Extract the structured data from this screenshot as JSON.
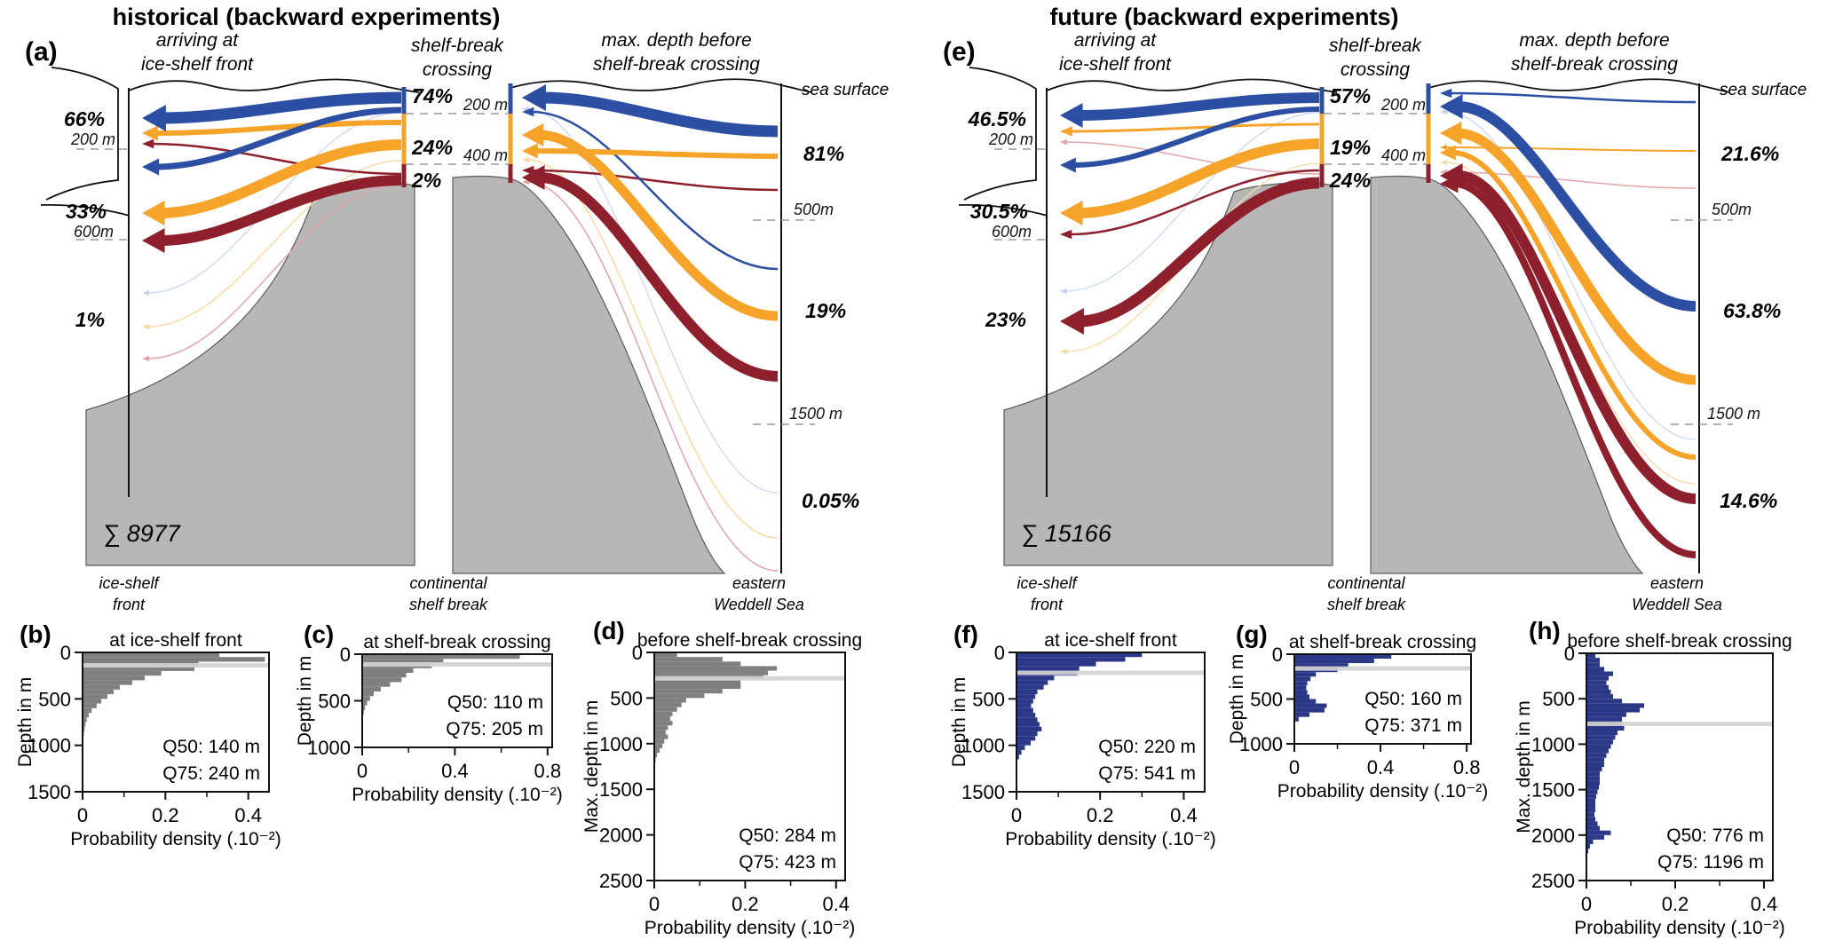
{
  "colors": {
    "blue": "#2d4fa3",
    "orange": "#f6a329",
    "darkred": "#8e1f2c",
    "pale_blue": "#c9d4ef",
    "pale_orange": "#fbd9a3",
    "pale_red": "#e0a5ab",
    "land_gray": "#b7b7b7",
    "hist_gray": "#7f7f7f",
    "hist_navy": "#2b3887",
    "median_line": "#d4d4d4"
  },
  "panel_a": {
    "label": "(a)",
    "title": "historical (backward experiments)",
    "col1": [
      "arriving at",
      "ice-shelf front"
    ],
    "col2": [
      "shelf-break",
      "crossing"
    ],
    "col3": [
      "max. depth before",
      "shelf-break crossing"
    ],
    "sea_surface": "sea surface",
    "left": {
      "p1": "66%",
      "d1": "200 m",
      "p2": "33%",
      "d2": "600m",
      "p3": "1%"
    },
    "mid": {
      "p1": "74%",
      "d1": "200 m",
      "p2": "24%",
      "d2": "400 m",
      "p3": "2%"
    },
    "right": {
      "p1": "81%",
      "d1": "500m",
      "p2": "19%",
      "d2": "1500 m",
      "p3": "0.05%"
    },
    "sum": "∑ 8977",
    "loc1": [
      "ice-shelf",
      "front"
    ],
    "loc2": [
      "continental",
      "shelf break"
    ],
    "loc3": [
      "eastern",
      "Weddell Sea"
    ]
  },
  "panel_e": {
    "label": "(e)",
    "title": "future (backward experiments)",
    "col1": [
      "arriving at",
      "ice-shelf front"
    ],
    "col2": [
      "shelf-break",
      "crossing"
    ],
    "col3": [
      "max. depth before",
      "shelf-break crossing"
    ],
    "sea_surface": "sea surface",
    "left": {
      "p1": "46.5%",
      "d1": "200 m",
      "p2": "30.5%",
      "d2": "600m",
      "p3": "23%"
    },
    "mid": {
      "p1": "57%",
      "d1": "200 m",
      "p2": "19%",
      "d2": "400 m",
      "p3": "24%"
    },
    "right": {
      "p1": "21.6%",
      "d1": "500m",
      "p2": "63.8%",
      "d2": "1500 m",
      "p3": "14.6%"
    },
    "sum": "∑ 15166",
    "loc1": [
      "ice-shelf",
      "front"
    ],
    "loc2": [
      "continental",
      "shelf break"
    ],
    "loc3": [
      "eastern",
      "Weddell Sea"
    ]
  },
  "chart_data": [
    {
      "type": "bar",
      "id": "b",
      "panel_label": "(b)",
      "title": "at ice-shelf front",
      "ylabel": "Depth in m",
      "xlabel": "Probability density (.10⁻²)",
      "ylim": [
        0,
        1500
      ],
      "xlim": [
        0,
        0.45
      ],
      "bin_m": 50,
      "yticks": {
        "values": [
          0,
          500,
          1000,
          1500
        ],
        "labels": [
          "0",
          "500",
          "1000",
          "1500"
        ]
      },
      "xticks": {
        "values": [
          0,
          0.2,
          0.4
        ],
        "labels": [
          "0",
          "0.2",
          "0.4"
        ],
        "minor": [
          0.1,
          0.3
        ]
      },
      "q50_m": 140,
      "q75_m": 240,
      "q50_label": "Q50: 140 m",
      "q75_label": "Q75: 240 m",
      "bar_color": "#7f7f7f",
      "values": [
        0.33,
        0.44,
        0.28,
        0.27,
        0.19,
        0.15,
        0.12,
        0.09,
        0.075,
        0.06,
        0.045,
        0.034,
        0.022,
        0.015,
        0.01,
        0.007,
        0.005,
        0.003,
        0.002,
        0.002,
        0.001,
        0.001,
        0.001,
        0,
        0,
        0,
        0,
        0,
        0,
        0
      ]
    },
    {
      "type": "bar",
      "id": "c",
      "panel_label": "(c)",
      "title": "at shelf-break crossing",
      "ylabel": "Depth in m",
      "xlabel": "Probability density (.10⁻²)",
      "ylim": [
        0,
        1000
      ],
      "xlim": [
        0,
        0.82
      ],
      "bin_m": 50,
      "yticks": {
        "values": [
          0,
          500,
          1000
        ],
        "labels": [
          "0",
          "500",
          "1000"
        ]
      },
      "xticks": {
        "values": [
          0,
          0.4,
          0.8
        ],
        "labels": [
          "0",
          "0.4",
          "0.8"
        ],
        "minor": [
          0.2,
          0.6
        ]
      },
      "q50_m": 110,
      "q75_m": 205,
      "q50_label": "Q50: 110 m",
      "q75_label": "Q75: 205 m",
      "bar_color": "#7f7f7f",
      "values": [
        0.68,
        0.35,
        0.3,
        0.22,
        0.19,
        0.17,
        0.12,
        0.08,
        0.05,
        0.034,
        0.021,
        0.012,
        0.007,
        0.004,
        0.002,
        0.001,
        0,
        0,
        0,
        0
      ]
    },
    {
      "type": "bar",
      "id": "d",
      "panel_label": "(d)",
      "title": "before shelf-break crossing",
      "ylabel": "Max. depth in m",
      "xlabel": "Probability density (.10⁻²)",
      "ylim": [
        0,
        2500
      ],
      "xlim": [
        0,
        0.42
      ],
      "bin_m": 50,
      "yticks": {
        "values": [
          0,
          500,
          1000,
          1500,
          2000,
          2500
        ],
        "labels": [
          "0",
          "500",
          "1000",
          "1500",
          "2000",
          "2500"
        ]
      },
      "xticks": {
        "values": [
          0,
          0.2,
          0.4
        ],
        "labels": [
          "0",
          "0.2",
          "0.4"
        ],
        "minor": [
          0.1,
          0.3
        ]
      },
      "q50_m": 284,
      "q75_m": 423,
      "q50_label": "Q50: 284 m",
      "q75_label": "Q75: 423 m",
      "bar_color": "#7f7f7f",
      "values": [
        0.05,
        0.15,
        0.19,
        0.27,
        0.25,
        0.24,
        0.19,
        0.19,
        0.15,
        0.11,
        0.07,
        0.06,
        0.05,
        0.04,
        0.035,
        0.04,
        0.03,
        0.025,
        0.03,
        0.022,
        0.018,
        0.012,
        0.006,
        0.003,
        0,
        0,
        0,
        0,
        0,
        0,
        0,
        0,
        0,
        0,
        0,
        0,
        0,
        0,
        0,
        0,
        0,
        0,
        0,
        0,
        0,
        0,
        0,
        0,
        0,
        0
      ]
    },
    {
      "type": "bar",
      "id": "f",
      "panel_label": "(f)",
      "title": "at ice-shelf front",
      "ylabel": "Depth in m",
      "xlabel": "Probability density (.10⁻²)",
      "ylim": [
        0,
        1500
      ],
      "xlim": [
        0,
        0.45
      ],
      "bin_m": 50,
      "yticks": {
        "values": [
          0,
          500,
          1000,
          1500
        ],
        "labels": [
          "0",
          "500",
          "1000",
          "1500"
        ]
      },
      "xticks": {
        "values": [
          0,
          0.2,
          0.4
        ],
        "labels": [
          "0",
          "0.2",
          "0.4"
        ],
        "minor": [
          0.1,
          0.3
        ]
      },
      "q50_m": 220,
      "q75_m": 541,
      "q50_label": "Q50: 220 m",
      "q75_label": "Q75: 541 m",
      "bar_color": "#2b3887",
      "values": [
        0.3,
        0.26,
        0.19,
        0.15,
        0.145,
        0.09,
        0.075,
        0.065,
        0.05,
        0.045,
        0.04,
        0.035,
        0.04,
        0.045,
        0.05,
        0.055,
        0.06,
        0.05,
        0.045,
        0.034,
        0.02,
        0.012,
        0.006,
        0.002,
        0,
        0,
        0,
        0,
        0,
        0
      ]
    },
    {
      "type": "bar",
      "id": "g",
      "panel_label": "(g)",
      "title": "at shelf-break crossing",
      "ylabel": "Depth in m",
      "xlabel": "Probability density (.10⁻²)",
      "ylim": [
        0,
        1000
      ],
      "xlim": [
        0,
        0.82
      ],
      "bin_m": 50,
      "yticks": {
        "values": [
          0,
          500,
          1000
        ],
        "labels": [
          "0",
          "500",
          "1000"
        ]
      },
      "xticks": {
        "values": [
          0,
          0.4,
          0.8
        ],
        "labels": [
          "0",
          "0.4",
          "0.8"
        ],
        "minor": [
          0.2,
          0.6
        ]
      },
      "q50_m": 160,
      "q75_m": 371,
      "q50_label": "Q50: 160 m",
      "q75_label": "Q75: 371 m",
      "bar_color": "#2b3887",
      "values": [
        0.45,
        0.37,
        0.25,
        0.2,
        0.1,
        0.075,
        0.06,
        0.055,
        0.06,
        0.07,
        0.1,
        0.15,
        0.14,
        0.07,
        0.02,
        0,
        0,
        0,
        0,
        0
      ]
    },
    {
      "type": "bar",
      "id": "h",
      "panel_label": "(h)",
      "title": "before shelf-break crossing",
      "ylabel": "Max. depth in m",
      "xlabel": "Probability density (.10⁻²)",
      "ylim": [
        0,
        2500
      ],
      "xlim": [
        0,
        0.42
      ],
      "bin_m": 50,
      "yticks": {
        "values": [
          0,
          500,
          1000,
          1500,
          2000,
          2500
        ],
        "labels": [
          "0",
          "500",
          "1000",
          "1500",
          "2000",
          "2500"
        ]
      },
      "xticks": {
        "values": [
          0,
          0.2,
          0.4
        ],
        "labels": [
          "0",
          "0.2",
          "0.4"
        ],
        "minor": [
          0.1,
          0.3
        ]
      },
      "q50_m": 776,
      "q75_m": 1196,
      "q50_label": "Q50: 776 m",
      "q75_label": "Q75: 1196 m",
      "bar_color": "#2b3887",
      "values": [
        0.02,
        0.03,
        0.03,
        0.04,
        0.06,
        0.05,
        0.045,
        0.05,
        0.055,
        0.06,
        0.08,
        0.13,
        0.12,
        0.09,
        0.08,
        0.08,
        0.085,
        0.07,
        0.065,
        0.06,
        0.055,
        0.05,
        0.045,
        0.04,
        0.04,
        0.035,
        0.03,
        0.03,
        0.03,
        0.028,
        0.025,
        0.022,
        0.02,
        0.02,
        0.02,
        0.018,
        0.02,
        0.025,
        0.03,
        0.055,
        0.04,
        0.015,
        0.008,
        0.004,
        0.002,
        0,
        0,
        0,
        0,
        0
      ]
    }
  ]
}
